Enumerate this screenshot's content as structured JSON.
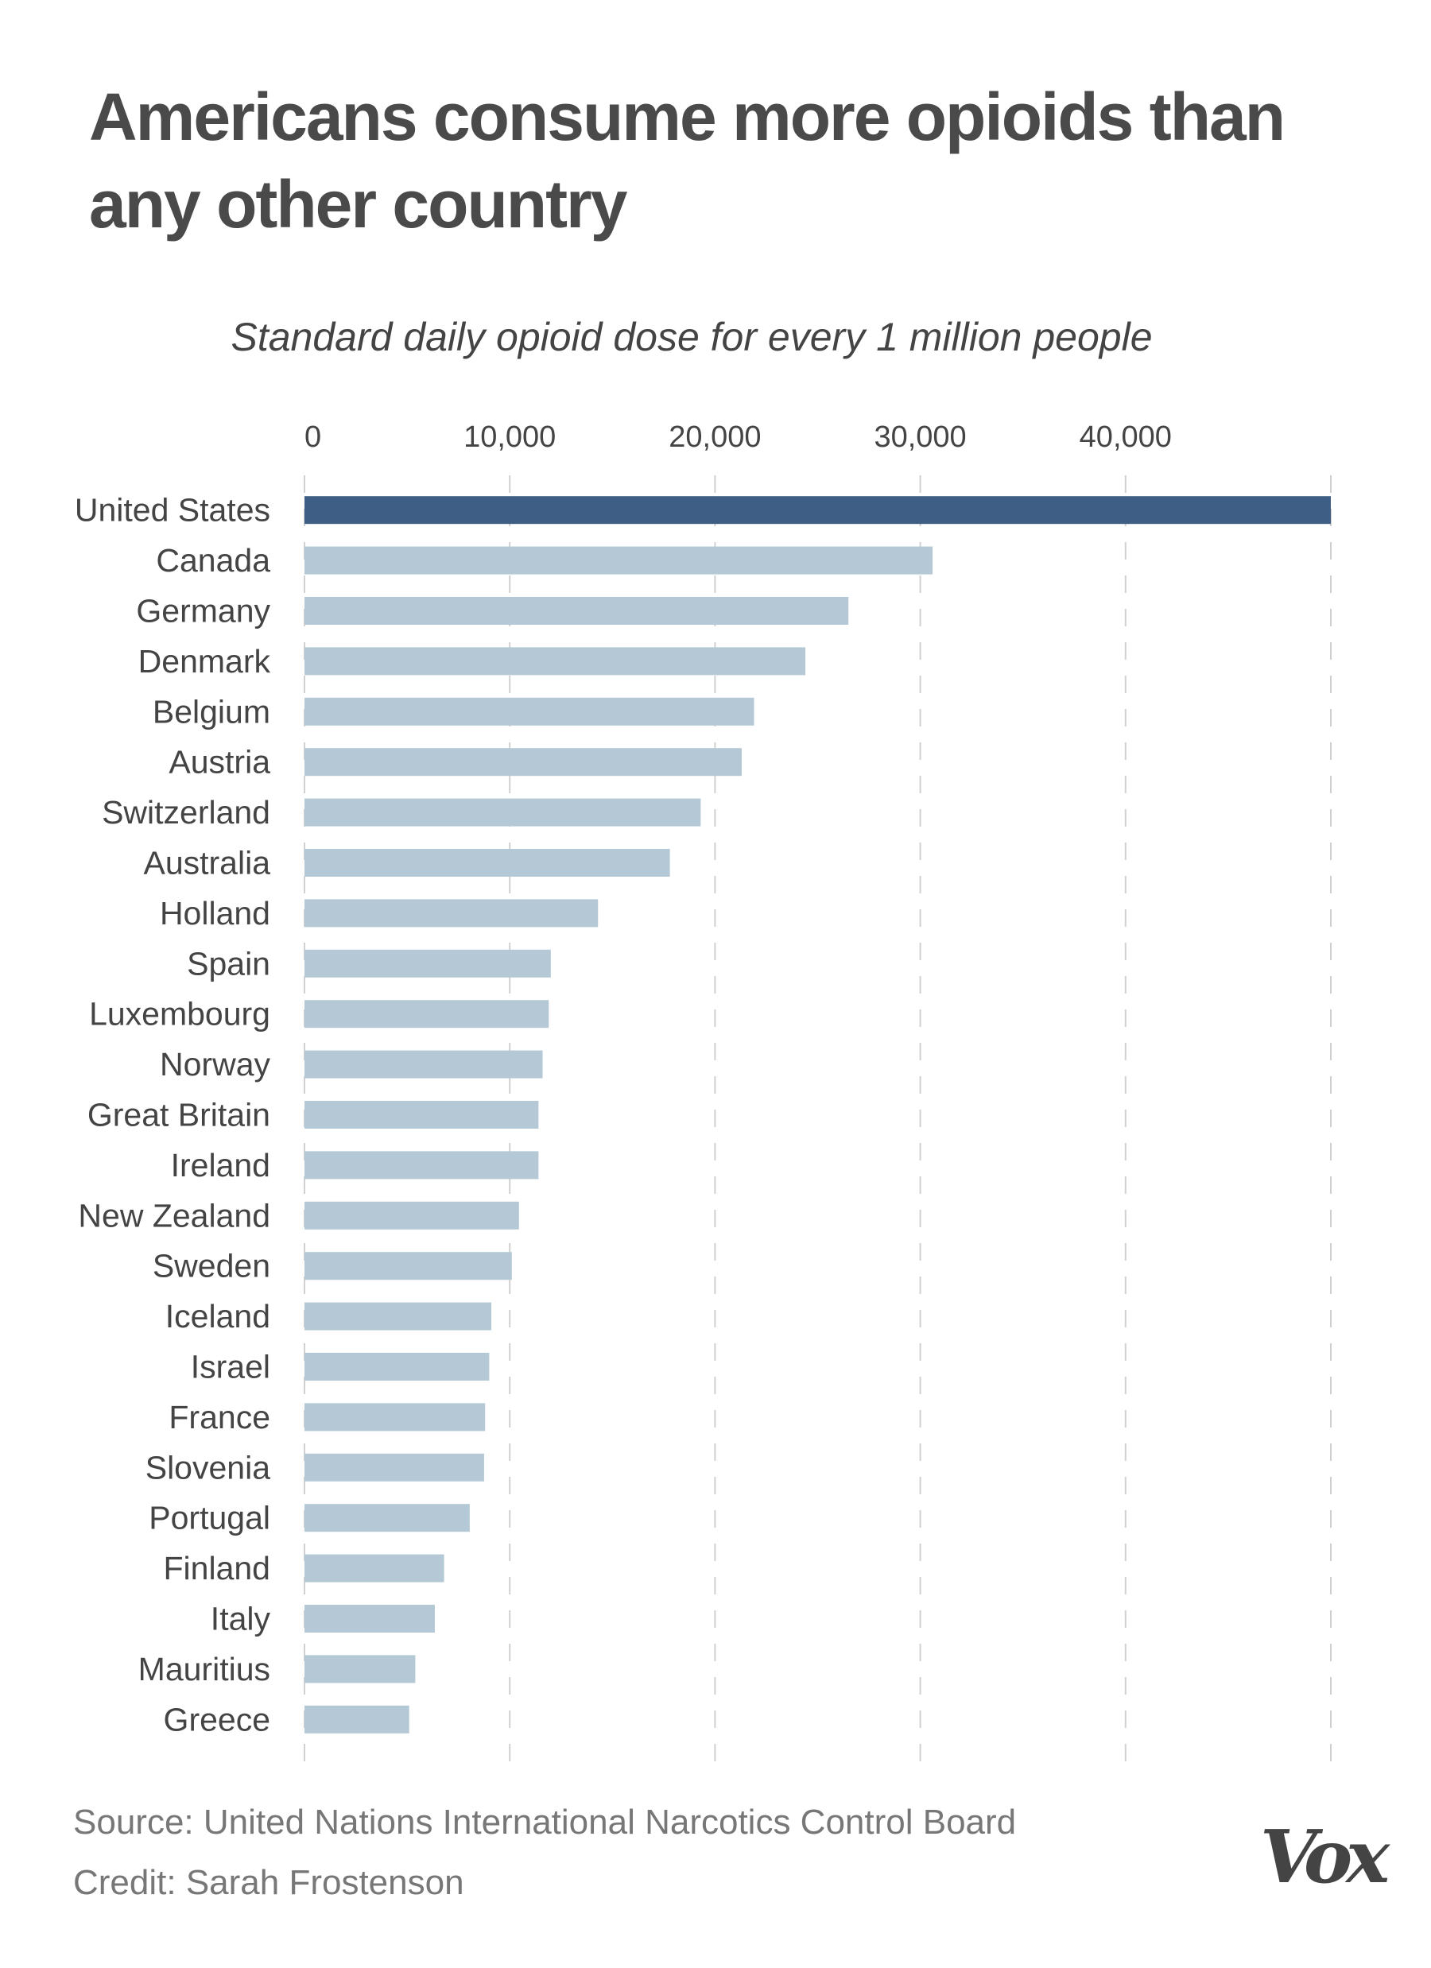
{
  "title": "Americans consume more opioids than any other country",
  "subtitle": "Standard daily opioid dose for every 1 million people",
  "source": "Source: United Nations International Narcotics Control Board",
  "credit": "Credit: Sarah Frostenson",
  "logo": "Vox",
  "colors": {
    "highlight": "#3f5e85",
    "bar": "#b4c9d5",
    "grid": "#d0d0d0",
    "text": "#4a4a4a"
  },
  "chart_data": {
    "type": "bar",
    "orientation": "horizontal",
    "title": "Americans consume more opioids than any other country",
    "subtitle": "Standard daily opioid dose for every 1 million people",
    "xlim": [
      0,
      50000
    ],
    "xticks": [
      0,
      10000,
      20000,
      30000,
      40000
    ],
    "xtick_labels": [
      "0",
      "10,000",
      "20,000",
      "30,000",
      "40,000"
    ],
    "grid": true,
    "highlight": "United States",
    "categories": [
      "United States",
      "Canada",
      "Germany",
      "Denmark",
      "Belgium",
      "Austria",
      "Switzerland",
      "Australia",
      "Holland",
      "Spain",
      "Luxembourg",
      "Norway",
      "Great Britain",
      "Ireland",
      "New Zealand",
      "Sweden",
      "Iceland",
      "Israel",
      "France",
      "Slovenia",
      "Portugal",
      "Finland",
      "Italy",
      "Mauritius",
      "Greece"
    ],
    "values": [
      50000,
      30600,
      26500,
      24400,
      21900,
      21300,
      19300,
      17800,
      14300,
      12000,
      11900,
      11600,
      11400,
      11400,
      10450,
      10100,
      9100,
      9000,
      8800,
      8750,
      8050,
      6800,
      6350,
      5400,
      5100
    ]
  }
}
